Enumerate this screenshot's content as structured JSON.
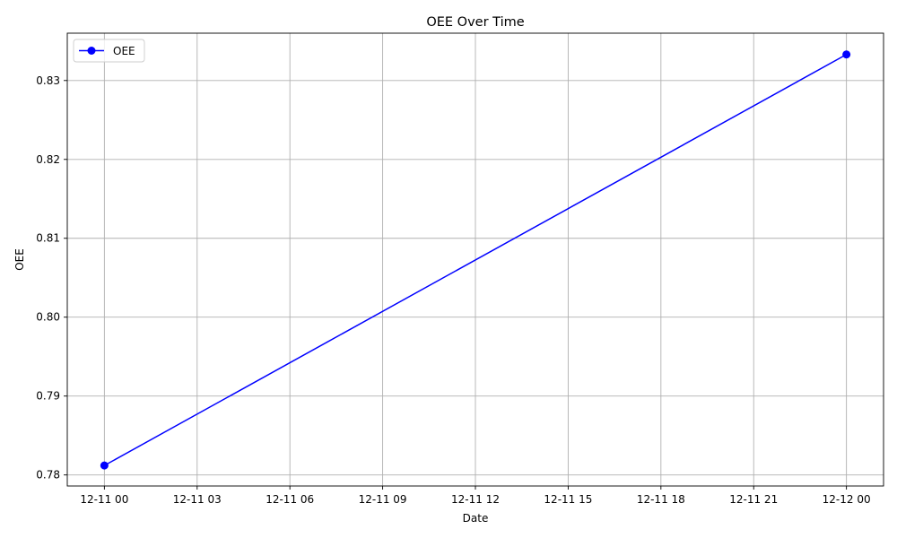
{
  "chart_data": {
    "type": "line",
    "title": "OEE Over Time",
    "xlabel": "Date",
    "ylabel": "OEE",
    "x_ticks": [
      {
        "label": "12-11 00",
        "value": "2023-12-11T00:00"
      },
      {
        "label": "12-11 03",
        "value": "2023-12-11T03:00"
      },
      {
        "label": "12-11 06",
        "value": "2023-12-11T06:00"
      },
      {
        "label": "12-11 09",
        "value": "2023-12-11T09:00"
      },
      {
        "label": "12-11 12",
        "value": "2023-12-11T12:00"
      },
      {
        "label": "12-11 15",
        "value": "2023-12-11T15:00"
      },
      {
        "label": "12-11 18",
        "value": "2023-12-11T18:00"
      },
      {
        "label": "12-11 21",
        "value": "2023-12-11T21:00"
      },
      {
        "label": "12-12 00",
        "value": "2023-12-12T00:00"
      }
    ],
    "xlim": [
      "2023-12-10T22:48",
      "2023-12-12T01:12"
    ],
    "y_ticks": [
      {
        "label": "0.78",
        "value": 0.78
      },
      {
        "label": "0.79",
        "value": 0.79
      },
      {
        "label": "0.80",
        "value": 0.8
      },
      {
        "label": "0.81",
        "value": 0.81
      },
      {
        "label": "0.82",
        "value": 0.82
      },
      {
        "label": "0.83",
        "value": 0.83
      }
    ],
    "ylim": [
      0.7786,
      0.836
    ],
    "series": [
      {
        "name": "OEE",
        "color": "#0000ff",
        "marker": "circle",
        "points": [
          {
            "x": "2023-12-11T00:00",
            "y": 0.7812
          },
          {
            "x": "2023-12-12T00:00",
            "y": 0.8333
          }
        ]
      }
    ],
    "grid": true,
    "legend": {
      "position": "top-left"
    }
  }
}
